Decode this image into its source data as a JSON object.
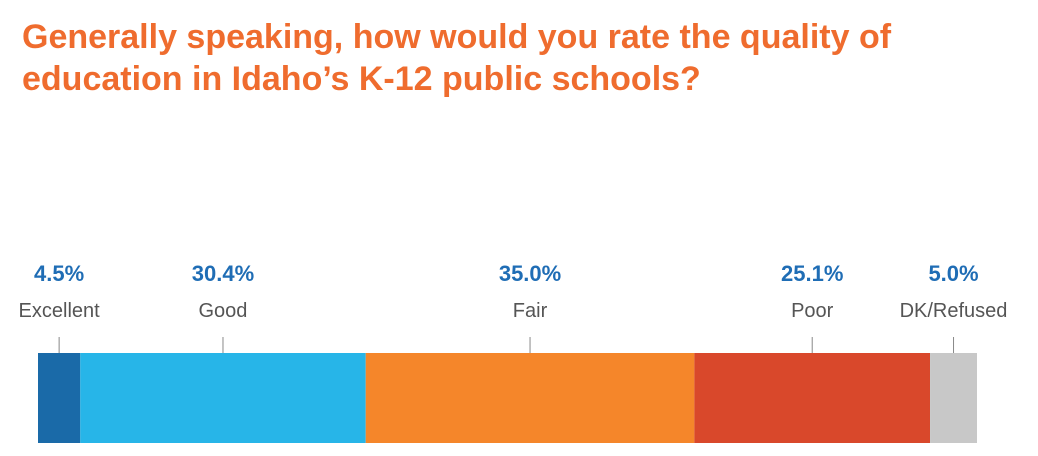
{
  "chart_data": {
    "type": "stacked-bar",
    "title": "Generally speaking, how would you rate the quality of education in Idaho’s K-12 public schools?",
    "categories": [
      "Excellent",
      "Good",
      "Fair",
      "Poor",
      "DK/Refused"
    ],
    "values": [
      4.5,
      30.4,
      35.0,
      25.1,
      5.0
    ],
    "value_labels": [
      "4.5%",
      "30.4%",
      "35.0%",
      "25.1%",
      "5.0%"
    ],
    "colors": [
      "#1a6aa8",
      "#27b5e8",
      "#f5862a",
      "#d9482b",
      "#c8c8c8"
    ]
  }
}
